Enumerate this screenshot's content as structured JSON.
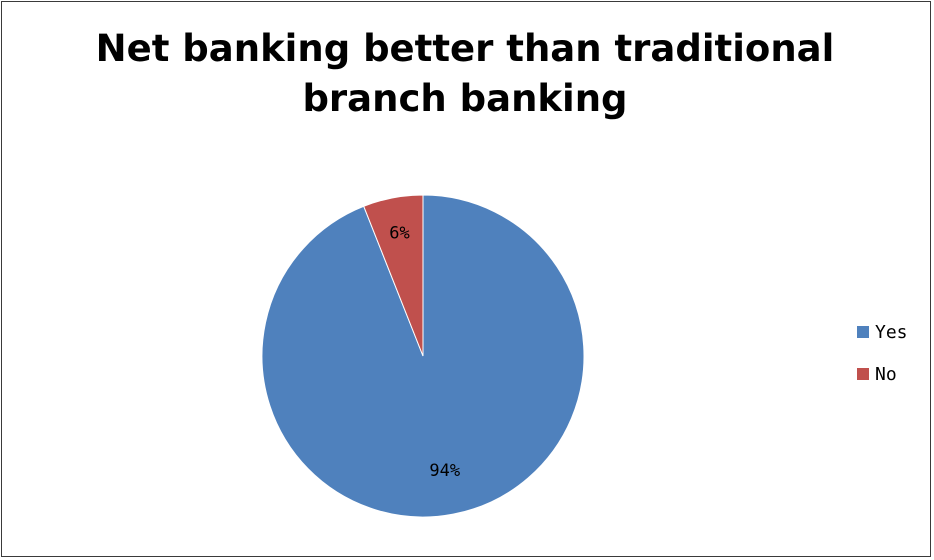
{
  "chart_data": {
    "type": "pie",
    "title": "Net banking better than traditional\nbranch banking",
    "categories": [
      "Yes",
      "No"
    ],
    "values": [
      94,
      6
    ],
    "data_labels": [
      "94%",
      "6%"
    ],
    "colors": [
      "#4f81bd",
      "#c0504d"
    ],
    "legend_position": "right"
  }
}
